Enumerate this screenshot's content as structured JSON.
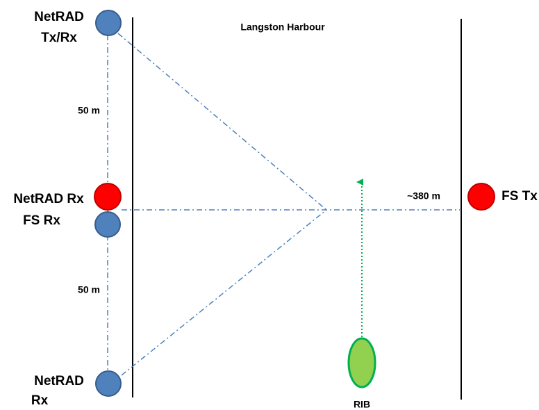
{
  "title": "Langston Harbour",
  "nodes": [
    {
      "label": [
        "NetRAD",
        "Tx/Rx"
      ]
    },
    {
      "label": [
        "NetRAD Rx"
      ]
    },
    {
      "label": [
        "FS Rx"
      ]
    },
    {
      "label": [
        "NetRAD",
        "Rx"
      ]
    },
    {
      "label": [
        "FS Tx"
      ]
    },
    {
      "label": [
        "RIB"
      ]
    }
  ],
  "distances": [
    "50 m",
    "50 m",
    "~380 m"
  ]
}
